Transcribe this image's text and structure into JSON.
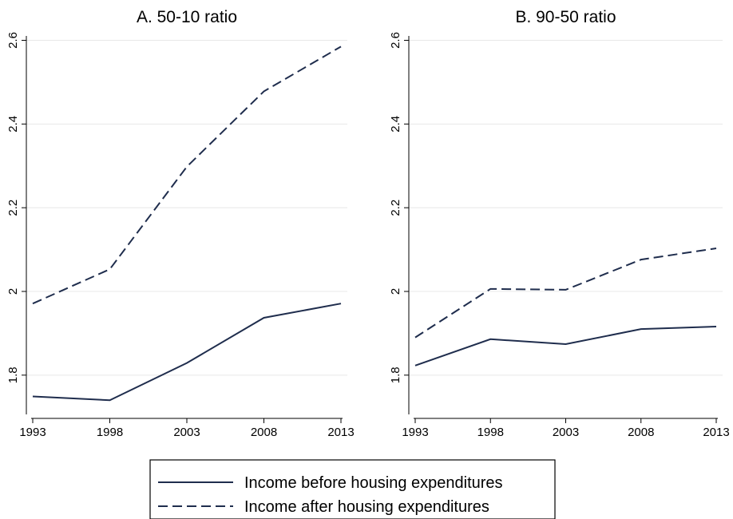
{
  "chart_data": [
    {
      "type": "line",
      "title": "A. 50-10 ratio",
      "x": [
        1993,
        1998,
        2003,
        2008,
        2013
      ],
      "series": [
        {
          "name": "Income before housing expenditures",
          "color": "#1f2d4d",
          "dash": "solid",
          "values": [
            1.749,
            1.74,
            1.829,
            1.937,
            1.971
          ]
        },
        {
          "name": "Income after housing expenditures",
          "color": "#1f2d4d",
          "dash": "dashed",
          "values": [
            1.971,
            2.053,
            2.298,
            2.478,
            2.585
          ]
        }
      ],
      "xlim": [
        1993,
        2013
      ],
      "xticks": [
        1993,
        1998,
        2003,
        2008,
        2013
      ],
      "ylim": [
        1.71,
        2.62
      ],
      "yticks": [
        1.8,
        2,
        2.2,
        2.4,
        2.6
      ],
      "grid": true
    },
    {
      "type": "line",
      "title": "B. 90-50 ratio",
      "x": [
        1993,
        1998,
        2003,
        2008,
        2013
      ],
      "series": [
        {
          "color": "#1f2d4d",
          "dash": "solid",
          "values": [
            1.823,
            1.886,
            1.874,
            1.91,
            1.916
          ]
        },
        {
          "color": "#1f2d4d",
          "dash": "dashed",
          "values": [
            1.89,
            2.006,
            2.004,
            2.076,
            2.103
          ]
        }
      ],
      "xlim": [
        1993,
        2013
      ],
      "xticks": [
        1993,
        1998,
        2003,
        2008,
        2013
      ],
      "ylim": [
        1.71,
        2.62
      ],
      "yticks": [
        1.8,
        2,
        2.2,
        2.4,
        2.6
      ],
      "grid": true
    }
  ]
}
